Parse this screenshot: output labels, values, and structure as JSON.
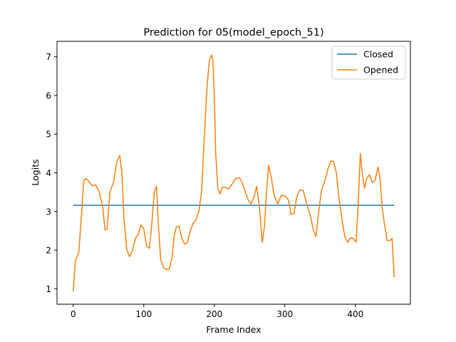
{
  "chart_data": {
    "type": "line",
    "title": "Prediction for 05(model_epoch_51)",
    "xlabel": "Frame Index",
    "ylabel": "Logits",
    "xlim": [
      -23,
      478
    ],
    "ylim": [
      0.6,
      7.4
    ],
    "xticks": [
      0,
      100,
      200,
      300,
      400
    ],
    "yticks": [
      1,
      2,
      3,
      4,
      5,
      6,
      7
    ],
    "grid": false,
    "legend_position": "top-right",
    "series": [
      {
        "name": "Closed",
        "color": "#1f77b4",
        "x": [
          0,
          455
        ],
        "y": [
          3.16,
          3.16
        ]
      },
      {
        "name": "Opened",
        "color": "#ff7f0e",
        "x": [
          0,
          3,
          8,
          12,
          15,
          18,
          22,
          27,
          32,
          37,
          42,
          45,
          48,
          52,
          57,
          62,
          66,
          69,
          72,
          76,
          80,
          84,
          88,
          92,
          96,
          100,
          104,
          108,
          111,
          115,
          118,
          121,
          124,
          128,
          132,
          136,
          140,
          143,
          146,
          150,
          154,
          158,
          162,
          166,
          170,
          174,
          178,
          182,
          186,
          190,
          193,
          196,
          198,
          200,
          202,
          205,
          208,
          211,
          215,
          220,
          225,
          230,
          236,
          240,
          244,
          248,
          252,
          256,
          260,
          264,
          268,
          271,
          274,
          277,
          281,
          285,
          290,
          295,
          300,
          305,
          309,
          313,
          317,
          321,
          326,
          331,
          336,
          340,
          344,
          348,
          352,
          357,
          361,
          365,
          369,
          373,
          377,
          381,
          385,
          389,
          393,
          397,
          401,
          404,
          407,
          410,
          413,
          416,
          420,
          424,
          428,
          432,
          435,
          438,
          441,
          445,
          449,
          452,
          455
        ],
        "y": [
          0.93,
          1.72,
          1.95,
          3.0,
          3.8,
          3.86,
          3.78,
          3.66,
          3.69,
          3.5,
          3.1,
          2.52,
          2.55,
          3.5,
          3.75,
          4.3,
          4.45,
          4.0,
          2.8,
          2.0,
          1.83,
          2.0,
          2.3,
          2.4,
          2.65,
          2.55,
          2.1,
          2.05,
          2.6,
          3.5,
          3.65,
          2.6,
          1.75,
          1.55,
          1.5,
          1.5,
          1.8,
          2.35,
          2.6,
          2.62,
          2.3,
          2.15,
          2.2,
          2.5,
          2.7,
          2.78,
          3.0,
          3.5,
          5.0,
          6.3,
          6.9,
          7.05,
          6.9,
          6.0,
          4.5,
          3.6,
          3.45,
          3.62,
          3.63,
          3.58,
          3.7,
          3.85,
          3.87,
          3.72,
          3.5,
          3.3,
          3.2,
          3.35,
          3.65,
          3.1,
          2.2,
          2.6,
          3.5,
          4.2,
          3.85,
          3.4,
          3.2,
          3.42,
          3.4,
          3.3,
          2.92,
          2.95,
          3.38,
          3.55,
          3.55,
          3.2,
          2.9,
          2.55,
          2.35,
          3.0,
          3.55,
          3.8,
          4.1,
          4.3,
          4.3,
          4.0,
          3.3,
          2.8,
          2.35,
          2.2,
          2.32,
          2.3,
          2.2,
          3.2,
          4.5,
          3.95,
          3.6,
          3.85,
          3.95,
          3.75,
          3.8,
          4.15,
          3.85,
          3.1,
          2.7,
          2.25,
          2.25,
          2.3,
          1.3
        ]
      }
    ]
  }
}
